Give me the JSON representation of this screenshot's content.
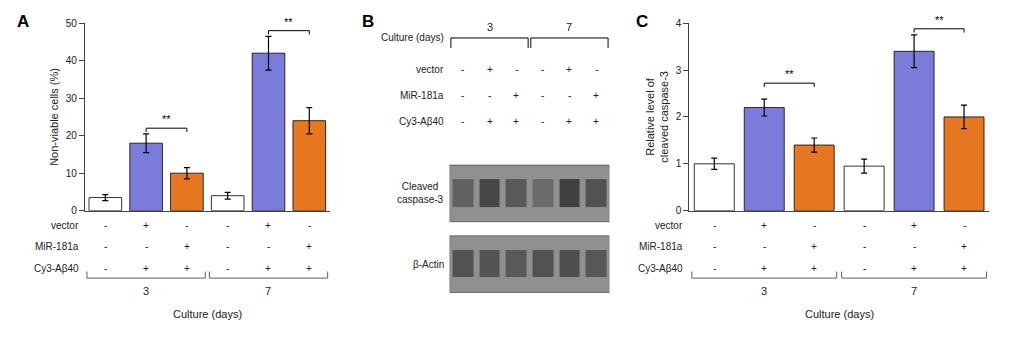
{
  "chart_data": [
    {
      "type": "bar",
      "title": "A",
      "ylabel": "Non-viable cells (%)",
      "categories": [
        null,
        null,
        null,
        null,
        null,
        null
      ],
      "values": [
        3.5,
        18.0,
        10.0,
        4.0,
        42.0,
        24.0
      ],
      "errors": [
        0.8,
        2.5,
        1.5,
        0.9,
        4.5,
        3.5
      ],
      "colors": [
        "#ffffff",
        "#7b7bdb",
        "#e87722",
        "#ffffff",
        "#7b7bdb",
        "#e87722"
      ],
      "ylim": [
        0,
        50
      ],
      "yticks": [
        0,
        10,
        20,
        30,
        40,
        50
      ],
      "grid": false,
      "annotations": [
        {
          "text": "**",
          "from": 1,
          "to": 2,
          "y": 22.0
        },
        {
          "text": "**",
          "from": 4,
          "to": 5,
          "y": 48.0
        }
      ],
      "xlabel": "Culture (days)",
      "table": {
        "row_labels": [
          "vector",
          "MiR-181a",
          "Cy3-Aβ40"
        ],
        "row_vals": [
          [
            "-",
            "+",
            "-",
            "-",
            "+",
            "-"
          ],
          [
            "-",
            "-",
            "+",
            "-",
            "-",
            "+"
          ],
          [
            "-",
            "+",
            "+",
            "-",
            "+",
            "+"
          ]
        ],
        "group_labels": [
          "3",
          "7"
        ]
      }
    },
    {
      "type": "heatmap",
      "title": "B",
      "rows": [
        "Cleaved\ncaspase-3",
        "β-Actin"
      ],
      "categories": [
        null,
        null,
        null,
        null,
        null,
        null
      ],
      "cells": [
        [
          0.38,
          0.28,
          0.35,
          0.42,
          0.25,
          0.32
        ],
        [
          0.32,
          0.33,
          0.35,
          0.32,
          0.31,
          0.34
        ]
      ],
      "zlim": [
        0,
        1
      ],
      "color": "#909090",
      "xlabel": "Culture (days)",
      "table": {
        "row_labels": [
          "vector",
          "MiR-181a",
          "Cy3-Aβ40"
        ],
        "row_vals": [
          [
            "-",
            "+",
            "-",
            "-",
            "+",
            "-"
          ],
          [
            "-",
            "-",
            "+",
            "-",
            "-",
            "+"
          ],
          [
            "-",
            "+",
            "+",
            "-",
            "+",
            "+"
          ]
        ],
        "group_labels": [
          "3",
          "7"
        ]
      }
    },
    {
      "type": "bar",
      "title": "C",
      "ylabel": "Relative level of\ncleaved caspase-3",
      "categories": [
        null,
        null,
        null,
        null,
        null,
        null
      ],
      "values": [
        1.0,
        2.2,
        1.4,
        0.95,
        3.4,
        2.0
      ],
      "errors": [
        0.12,
        0.18,
        0.15,
        0.15,
        0.35,
        0.25
      ],
      "colors": [
        "#ffffff",
        "#7b7bdb",
        "#e87722",
        "#ffffff",
        "#7b7bdb",
        "#e87722"
      ],
      "ylim": [
        0,
        4
      ],
      "yticks": [
        0,
        1,
        2,
        3,
        4
      ],
      "grid": false,
      "annotations": [
        {
          "text": "**",
          "from": 1,
          "to": 2,
          "y": 2.72
        },
        {
          "text": "**",
          "from": 4,
          "to": 5,
          "y": 3.88
        }
      ],
      "xlabel": "Culture (days)",
      "table": {
        "row_labels": [
          "vector",
          "MiR-181a",
          "Cy3-Aβ40"
        ],
        "row_vals": [
          [
            "-",
            "+",
            "-",
            "-",
            "+",
            "-"
          ],
          [
            "-",
            "-",
            "+",
            "-",
            "-",
            "+"
          ],
          [
            "-",
            "+",
            "+",
            "-",
            "+",
            "+"
          ]
        ],
        "group_labels": [
          "3",
          "7"
        ]
      }
    }
  ]
}
